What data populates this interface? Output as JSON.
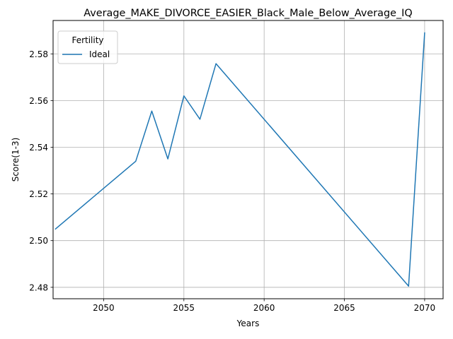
{
  "chart_data": {
    "type": "line",
    "title": "Average_MAKE_DIVORCE_EASIER_Black_Male_Below_Average_IQ",
    "xlabel": "Years",
    "ylabel": "Score(1-3)",
    "xlim": [
      2046.85,
      2071.15
    ],
    "ylim": [
      2.4751,
      2.5943
    ],
    "xticks": [
      2050,
      2055,
      2060,
      2065,
      2070
    ],
    "yticks": [
      2.48,
      2.5,
      2.52,
      2.54,
      2.56,
      2.58
    ],
    "ytick_labels": [
      "2.48",
      "2.50",
      "2.52",
      "2.54",
      "2.56",
      "2.58"
    ],
    "grid": true,
    "legend": {
      "title": "Fertility",
      "placement": "top-left"
    },
    "series": [
      {
        "name": "Ideal",
        "color": "#1f77b4",
        "x": [
          2047,
          2052,
          2053,
          2054,
          2055,
          2056,
          2057,
          2069,
          2070
        ],
        "y": [
          2.505,
          2.534,
          2.5555,
          2.535,
          2.562,
          2.552,
          2.5758,
          2.4805,
          2.589
        ]
      }
    ]
  }
}
